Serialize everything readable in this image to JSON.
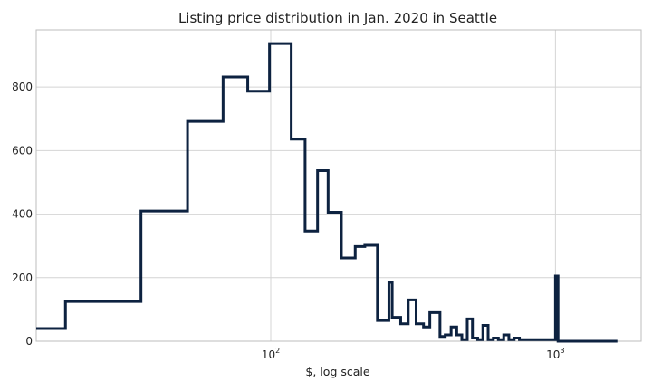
{
  "chart_data": {
    "type": "histogram",
    "title": "Listing price distribution in Jan. 2020 in Seattle",
    "xlabel": "$, log scale",
    "ylabel": "",
    "x_scale": "log",
    "xlim": [
      15,
      2000
    ],
    "ylim": [
      0,
      980
    ],
    "grid": true,
    "line_color": "#0d2240",
    "x_ticks": [
      {
        "value": 100,
        "base": "10",
        "exp": "2"
      },
      {
        "value": 1000,
        "base": "10",
        "exp": "3"
      }
    ],
    "y_ticks": [
      0,
      200,
      400,
      600,
      800
    ],
    "bin_edges": [
      15,
      19,
      35,
      51,
      68,
      83,
      99,
      118,
      132,
      146,
      159,
      177,
      198,
      214,
      237,
      260,
      267,
      286,
      304,
      324,
      344,
      362,
      393,
      410,
      430,
      450,
      469,
      490,
      511,
      533,
      556,
      580,
      605,
      630,
      658,
      686,
      716,
      747,
      779,
      812,
      1000,
      1021,
      1650
    ],
    "counts": [
      40,
      125,
      410,
      692,
      832,
      787,
      937,
      636,
      347,
      537,
      406,
      262,
      298,
      302,
      65,
      185,
      75,
      55,
      130,
      55,
      45,
      90,
      15,
      20,
      45,
      20,
      5,
      70,
      10,
      5,
      50,
      5,
      10,
      5,
      20,
      5,
      10,
      5,
      5,
      5,
      205,
      0
    ]
  }
}
